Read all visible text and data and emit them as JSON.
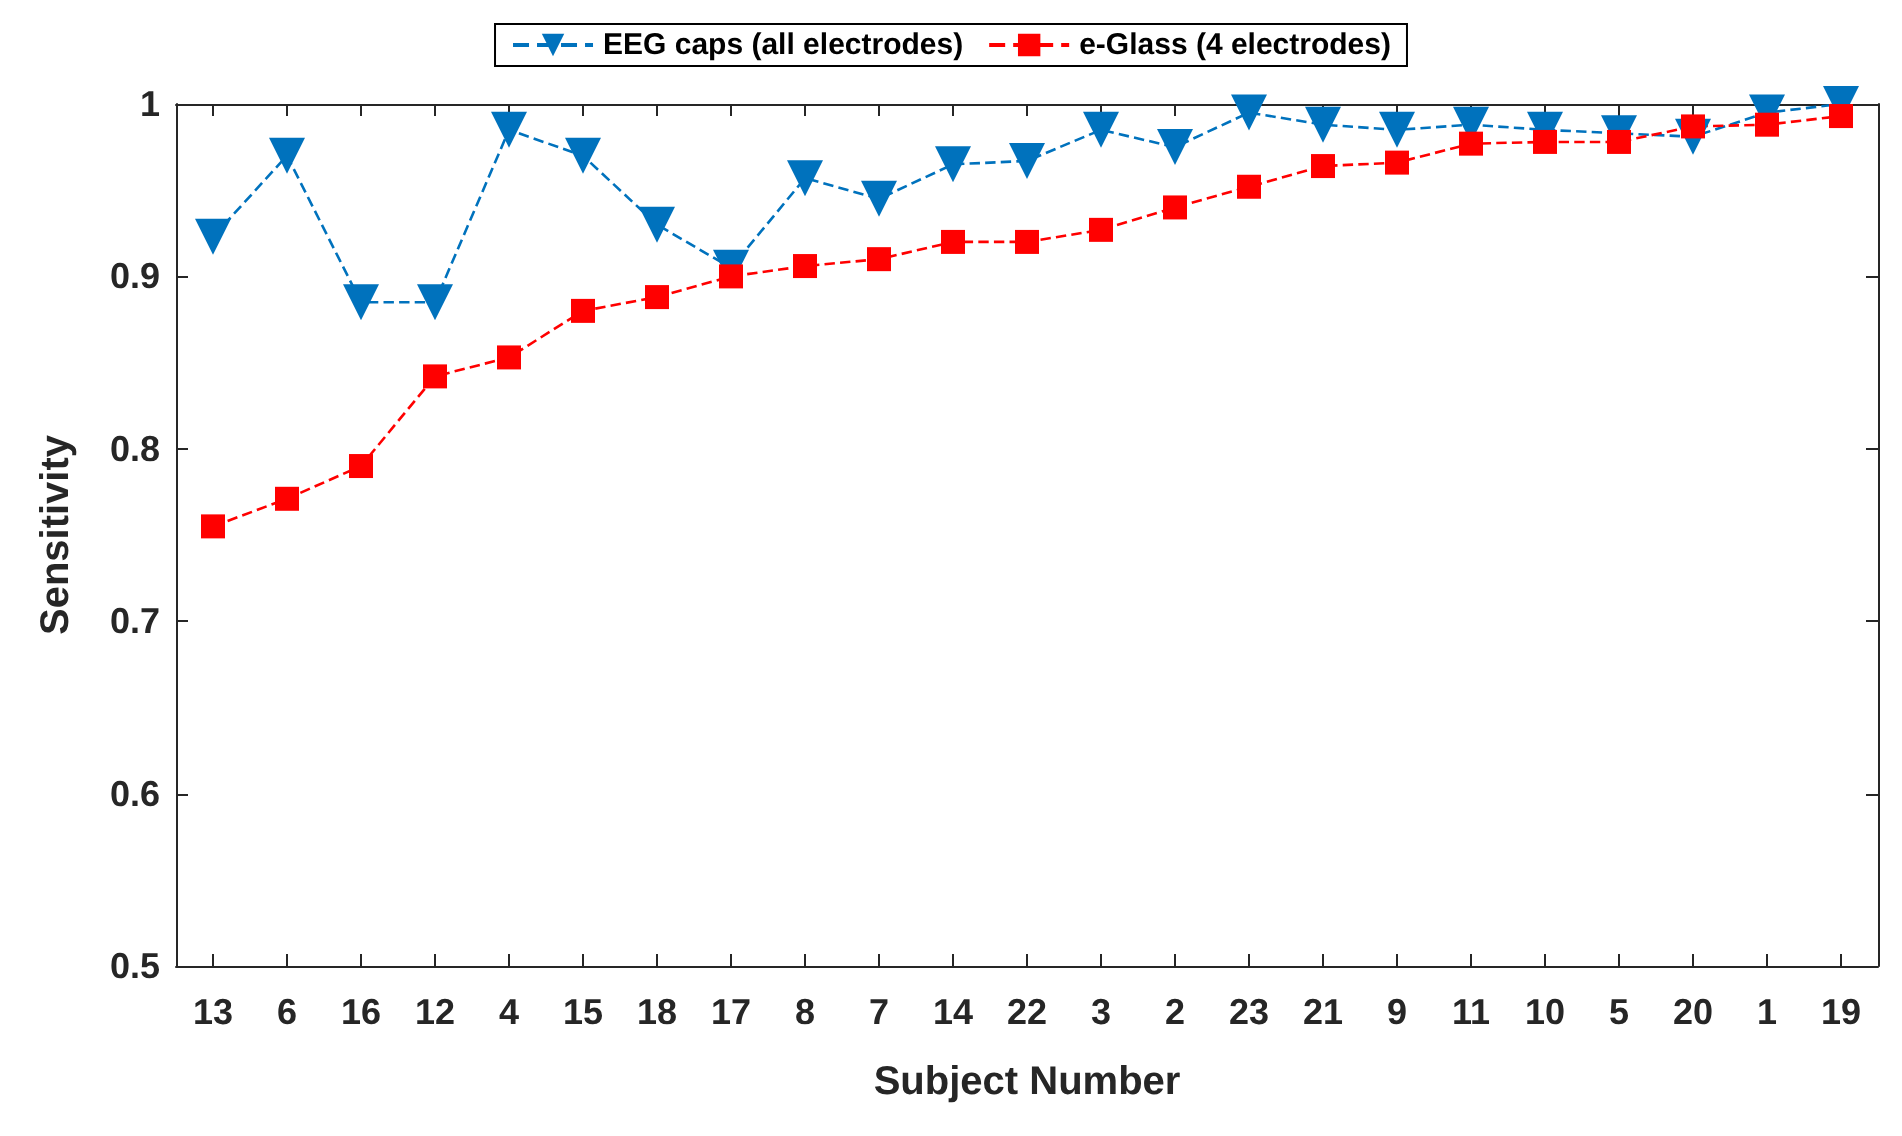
{
  "chart_data": {
    "type": "line",
    "xlabel": "Subject Number",
    "ylabel": "Sensitivity",
    "categories": [
      "13",
      "6",
      "16",
      "12",
      "4",
      "15",
      "18",
      "17",
      "8",
      "7",
      "14",
      "22",
      "3",
      "2",
      "23",
      "21",
      "9",
      "11",
      "10",
      "5",
      "20",
      "1",
      "19"
    ],
    "series": [
      {
        "name": "EEG caps (all electrodes)",
        "color": "#0072bd",
        "marker": "triangle",
        "values": [
          0.923,
          0.97,
          0.885,
          0.885,
          0.985,
          0.97,
          0.93,
          0.905,
          0.957,
          0.945,
          0.965,
          0.967,
          0.985,
          0.975,
          0.995,
          0.988,
          0.985,
          0.988,
          0.985,
          0.983,
          0.981,
          0.995,
          1.0
        ]
      },
      {
        "name": "e-Glass (4 electrodes)",
        "color": "#ff0000",
        "marker": "square",
        "values": [
          0.755,
          0.771,
          0.79,
          0.842,
          0.853,
          0.88,
          0.888,
          0.9,
          0.906,
          0.91,
          0.92,
          0.92,
          0.927,
          0.94,
          0.952,
          0.964,
          0.966,
          0.977,
          0.978,
          0.978,
          0.987,
          0.988,
          0.993
        ]
      }
    ],
    "ylim": [
      0.5,
      1
    ],
    "yticks": [
      0.5,
      0.6,
      0.7,
      0.8,
      0.9,
      1
    ],
    "grid": false,
    "legend": "top",
    "line_style": "dashed"
  }
}
